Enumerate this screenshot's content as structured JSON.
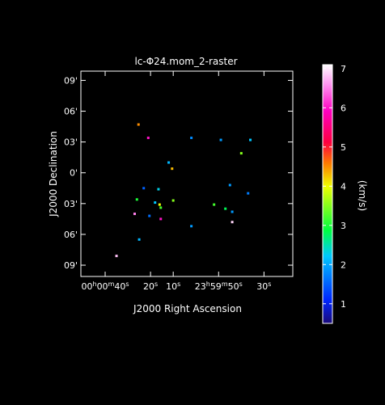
{
  "chart_data": {
    "type": "scatter",
    "title": "lc-Φ24.mom_2-raster",
    "xlabel": "J2000 Right Ascension",
    "ylabel": "J2000 Declination",
    "x_ticks": [
      {
        "value": 40,
        "label": "00h00m40s"
      },
      {
        "value": 20,
        "label": "20s"
      },
      {
        "value": 10,
        "label": "10s"
      },
      {
        "value": -10,
        "label": "23h59m50s"
      },
      {
        "value": -30,
        "label": "30s"
      }
    ],
    "y_ticks": [
      {
        "value": 9,
        "label": "09'"
      },
      {
        "value": 6,
        "label": "06'"
      },
      {
        "value": 3,
        "label": "03'"
      },
      {
        "value": 0,
        "label": "0'"
      },
      {
        "value": -3,
        "label": "03'"
      },
      {
        "value": -6,
        "label": "06'"
      },
      {
        "value": -9,
        "label": "09'"
      }
    ],
    "xlim": [
      50.7,
      -42.7
    ],
    "ylim": [
      -10.1,
      9.9
    ],
    "colorbar": {
      "label": "(km/s)",
      "range": [
        0.5,
        7.1
      ],
      "ticks": [
        1,
        2,
        3,
        4,
        5,
        6,
        7
      ]
    },
    "points": [
      {
        "x": 25.3,
        "y": 4.7,
        "v": 4.5
      },
      {
        "x": 21.0,
        "y": 3.4,
        "v": 6.0
      },
      {
        "x": 2.0,
        "y": 3.4,
        "v": 1.8
      },
      {
        "x": -11.0,
        "y": 3.2,
        "v": 1.9
      },
      {
        "x": -24.0,
        "y": 3.2,
        "v": 2.2
      },
      {
        "x": -20.0,
        "y": 1.9,
        "v": 3.5
      },
      {
        "x": 12.0,
        "y": 1.0,
        "v": 2.1
      },
      {
        "x": 10.5,
        "y": 0.4,
        "v": 4.3
      },
      {
        "x": 23.0,
        "y": -1.5,
        "v": 1.5
      },
      {
        "x": 16.5,
        "y": -1.6,
        "v": 2.3
      },
      {
        "x": -15.0,
        "y": -1.2,
        "v": 1.9
      },
      {
        "x": -23.0,
        "y": -2.0,
        "v": 1.7
      },
      {
        "x": 26.0,
        "y": -2.6,
        "v": 3.0
      },
      {
        "x": 18.0,
        "y": -2.9,
        "v": 2.2
      },
      {
        "x": 16.0,
        "y": -3.1,
        "v": 4.0
      },
      {
        "x": 15.5,
        "y": -3.4,
        "v": 3.2
      },
      {
        "x": 10.0,
        "y": -2.7,
        "v": 3.5
      },
      {
        "x": -8.0,
        "y": -3.1,
        "v": 3.2
      },
      {
        "x": -13.0,
        "y": -3.5,
        "v": 2.8
      },
      {
        "x": -16.0,
        "y": -3.8,
        "v": 1.9
      },
      {
        "x": 27.0,
        "y": -4.0,
        "v": 6.5
      },
      {
        "x": 20.5,
        "y": -4.2,
        "v": 1.6
      },
      {
        "x": 15.5,
        "y": -4.5,
        "v": 6.0
      },
      {
        "x": -16.0,
        "y": -4.8,
        "v": 6.9
      },
      {
        "x": 2.0,
        "y": -5.2,
        "v": 1.9
      },
      {
        "x": 25.0,
        "y": -6.5,
        "v": 2.1
      },
      {
        "x": 35.0,
        "y": -8.1,
        "v": 6.8
      }
    ]
  }
}
